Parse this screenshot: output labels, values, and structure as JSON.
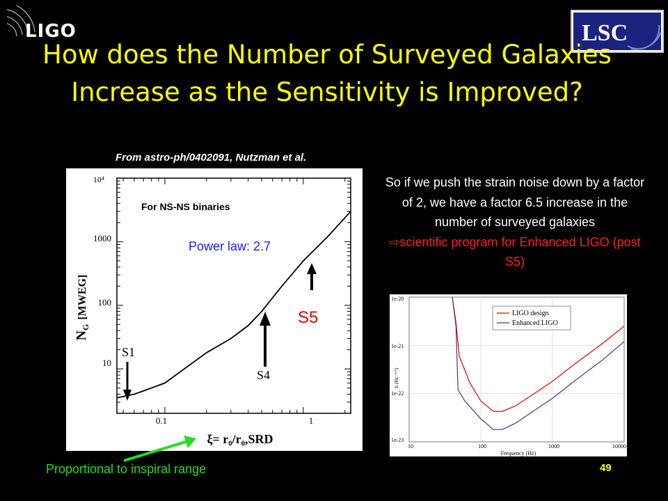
{
  "header": {
    "logo_left": "LIGO",
    "logo_right": "LSC",
    "title": "How does the Number of Surveyed Galaxies Increase as the Sensitivity is Improved?"
  },
  "source": "From astro-ph/0402091, Nutzman et al.",
  "main_plot": {
    "annotation_binaries": "For NS-NS binaries",
    "power_law": "Power law: 2.7",
    "s5": "S5",
    "s4": "S4",
    "s1": "S1",
    "ylabel_main": "N",
    "ylabel_sub": "G",
    "ylabel_unit": "[MWEG]",
    "xlabel": "ξ= r₀/r₀,SRD",
    "yticks": [
      "10⁴",
      "1000",
      "100",
      "10"
    ],
    "xticks": [
      "0.1",
      "1"
    ],
    "colors": {
      "power_law": "#1a1aff",
      "s5": "#e00000"
    }
  },
  "right_text": {
    "body": "So if we push the strain noise down by a factor of 2, we have a factor 6.5 increase in the number of surveyed galaxies",
    "highlight": "⇨scientific program for Enhanced LIGO (post S5)"
  },
  "small_plot": {
    "legend": [
      "LIGO design",
      "Enhanced LIGO"
    ],
    "xlabel": "Frequency (Hz)",
    "yticks": [
      "1e-20",
      "1e-21",
      "1e-22",
      "1e-23"
    ],
    "xticks": [
      "10",
      "100",
      "1000",
      "10000"
    ],
    "colors": {
      "ligo_design": "#e00000",
      "enhanced": "#5a2a8a"
    }
  },
  "footer": {
    "proportional": "Proportional to inspiral range",
    "page": "49",
    "arrow_color": "#22dd22"
  },
  "chart_data": [
    {
      "type": "line",
      "title": "",
      "xlabel": "ξ= r₀/r₀,SRD",
      "ylabel": "N_G [MWEG]",
      "log_x": true,
      "log_y": true,
      "xlim": [
        0.045,
        2.2
      ],
      "ylim": [
        2,
        10000
      ],
      "series": [
        {
          "x": [
            0.045,
            0.06,
            0.08,
            0.1,
            0.2,
            0.3,
            0.4,
            0.5,
            0.7,
            1.0,
            1.5,
            2.2
          ],
          "y": [
            3.5,
            4,
            5,
            6,
            18,
            30,
            48,
            80,
            200,
            500,
            1200,
            3000
          ]
        }
      ]
    },
    {
      "type": "line",
      "title": "",
      "xlabel": "Frequency (Hz)",
      "ylabel": "h (Hz^-1/2)",
      "log_x": true,
      "log_y": true,
      "xlim": [
        10,
        10000
      ],
      "ylim": [
        1e-23,
        1e-20
      ],
      "series": [
        {
          "name": "LIGO design",
          "x": [
            40,
            45,
            50,
            70,
            100,
            150,
            200,
            300,
            500,
            1000,
            2000,
            5000,
            10000
          ],
          "y": [
            1e-20,
            3e-21,
            6e-22,
            1.7e-22,
            7e-23,
            4.3e-23,
            4.3e-23,
            5.5e-23,
            9e-23,
            1.8e-22,
            4e-22,
            1.1e-21,
            2.5e-21
          ]
        },
        {
          "name": "Enhanced LIGO",
          "x": [
            40,
            45,
            48,
            60,
            100,
            150,
            200,
            300,
            500,
            1000,
            2000,
            5000,
            10000
          ],
          "y": [
            1e-20,
            2.5e-21,
            1.2e-22,
            7e-23,
            3e-23,
            1.8e-23,
            1.8e-23,
            2.4e-23,
            4e-23,
            8e-23,
            1.8e-22,
            5e-22,
            1.2e-21
          ]
        }
      ]
    }
  ]
}
